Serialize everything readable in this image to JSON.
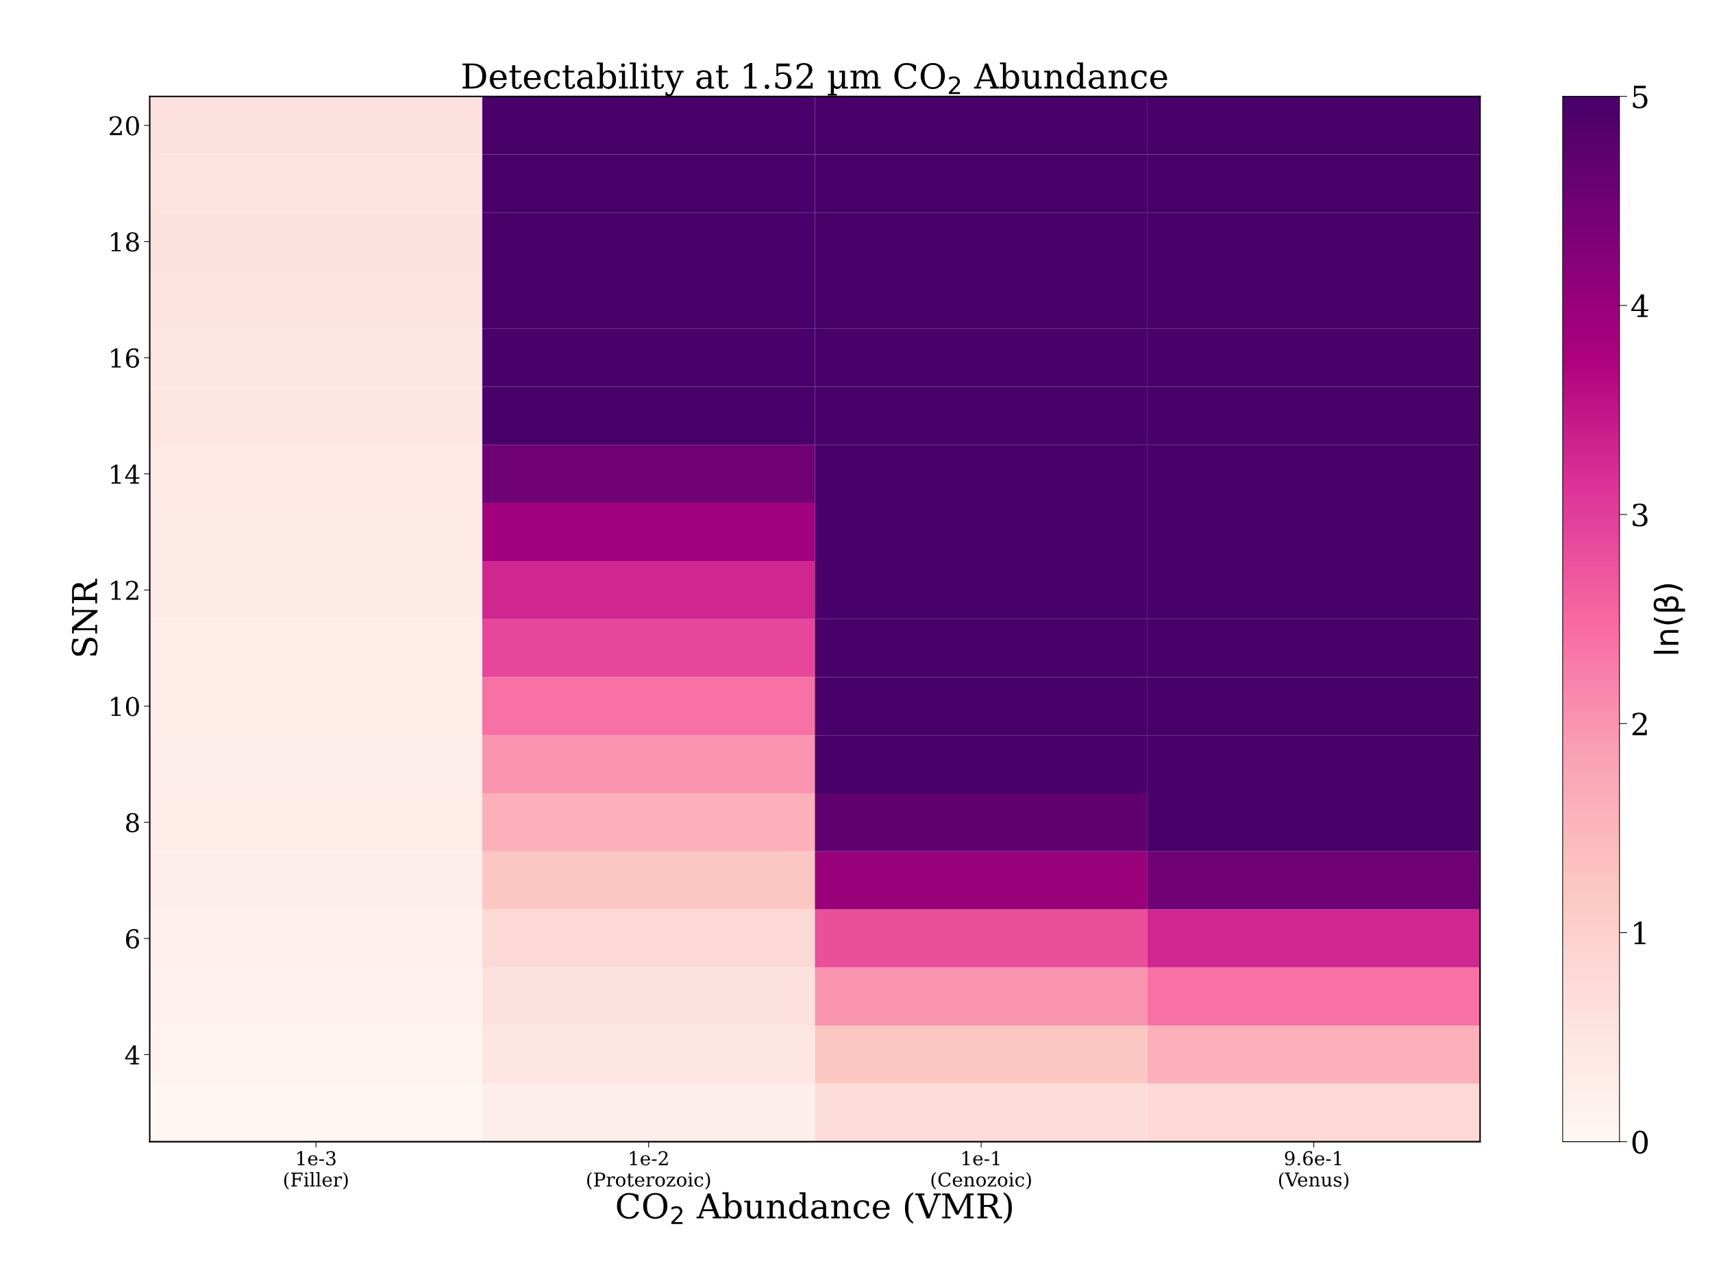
{
  "chart_data": {
    "type": "heatmap",
    "title": "Detectability at 1.52 µm CO$_{2}$ Abundance",
    "xlabel": "CO$_{2}$ Abundance (VMR)",
    "ylabel": "SNR",
    "clabel": "ln(β)",
    "categories": [
      "1e-3\n(Filler)",
      "1e-2\n(Proterozoic)",
      "1e-1\n(Cenozoic)",
      "9.6e-1\n(Venus)"
    ],
    "y_categories": [
      "20",
      null,
      "18",
      null,
      "16",
      null,
      "14",
      null,
      "12",
      null,
      "10",
      null,
      "8",
      null,
      "6",
      null,
      "4",
      null
    ],
    "cells": [
      [
        0.6,
        5,
        5,
        5
      ],
      [
        0.55,
        5,
        5,
        5
      ],
      [
        0.6,
        5,
        5,
        5
      ],
      [
        0.55,
        5,
        5,
        5
      ],
      [
        0.5,
        5,
        5,
        5
      ],
      [
        0.45,
        5,
        5,
        5
      ],
      [
        0.4,
        4.5,
        5,
        5
      ],
      [
        0.35,
        3.9,
        5,
        5
      ],
      [
        0.35,
        3.3,
        5,
        5
      ],
      [
        0.3,
        2.9,
        5,
        5
      ],
      [
        0.3,
        2.4,
        5,
        5
      ],
      [
        0.25,
        2.0,
        5,
        5
      ],
      [
        0.3,
        1.6,
        4.7,
        5
      ],
      [
        0.25,
        1.2,
        4.0,
        4.5
      ],
      [
        0.2,
        0.8,
        2.8,
        3.3
      ],
      [
        0.15,
        0.6,
        2.0,
        2.4
      ],
      [
        0.1,
        0.45,
        1.2,
        1.6
      ],
      [
        0.05,
        0.25,
        0.7,
        0.8
      ]
    ],
    "clim": [
      0,
      5
    ],
    "cticks": [
      0,
      1,
      2,
      3,
      4,
      5
    ]
  }
}
